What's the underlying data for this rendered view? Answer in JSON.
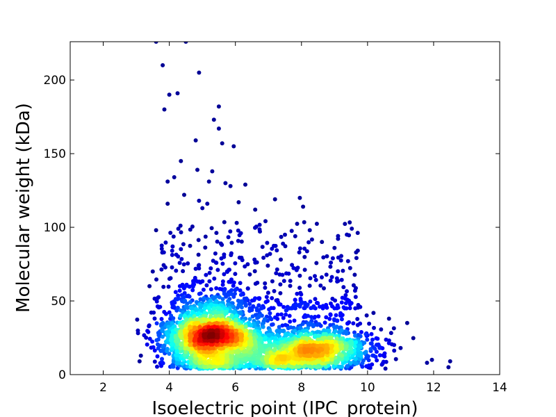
{
  "chart_data": {
    "type": "scatter",
    "title": "",
    "xlabel": "Isoelectric point (IPC_protein)",
    "ylabel": "Molecular weight (kDa)",
    "xlim": [
      1,
      14
    ],
    "ylim": [
      0,
      226
    ],
    "xticks": [
      2,
      4,
      6,
      8,
      10,
      12,
      14
    ],
    "yticks": [
      0,
      50,
      100,
      150,
      200
    ],
    "grid": false,
    "legend": "none",
    "color_scale": "density (jet: blue = low, red = high)",
    "clusters": [
      {
        "center_x": 5.3,
        "center_y": 24,
        "spread_x": 0.75,
        "spread_y": 13,
        "count": 2200,
        "peak_density": "high"
      },
      {
        "center_x": 8.5,
        "center_y": 17,
        "spread_x": 0.85,
        "spread_y": 9,
        "count": 1200,
        "peak_density": "medium"
      },
      {
        "center_x": 7.2,
        "center_y": 11,
        "spread_x": 0.6,
        "spread_y": 6,
        "count": 300,
        "peak_density": "low"
      }
    ],
    "outliers": [
      {
        "x": 3.6,
        "y": 226
      },
      {
        "x": 4.5,
        "y": 226
      },
      {
        "x": 3.8,
        "y": 210
      },
      {
        "x": 4.9,
        "y": 205
      },
      {
        "x": 4.0,
        "y": 190
      },
      {
        "x": 4.25,
        "y": 191
      },
      {
        "x": 3.85,
        "y": 180
      },
      {
        "x": 5.5,
        "y": 182
      },
      {
        "x": 5.35,
        "y": 173
      },
      {
        "x": 5.5,
        "y": 167
      },
      {
        "x": 4.8,
        "y": 159
      },
      {
        "x": 5.6,
        "y": 157
      },
      {
        "x": 5.95,
        "y": 155
      },
      {
        "x": 4.35,
        "y": 145
      },
      {
        "x": 4.85,
        "y": 139
      },
      {
        "x": 5.3,
        "y": 138
      },
      {
        "x": 4.15,
        "y": 134
      },
      {
        "x": 3.95,
        "y": 131
      },
      {
        "x": 5.7,
        "y": 130
      },
      {
        "x": 6.3,
        "y": 129
      },
      {
        "x": 5.85,
        "y": 128
      },
      {
        "x": 5.2,
        "y": 131
      },
      {
        "x": 4.45,
        "y": 122
      },
      {
        "x": 7.2,
        "y": 119
      },
      {
        "x": 7.95,
        "y": 120
      },
      {
        "x": 4.9,
        "y": 118
      },
      {
        "x": 5.15,
        "y": 116
      },
      {
        "x": 3.95,
        "y": 116
      },
      {
        "x": 6.1,
        "y": 117
      },
      {
        "x": 8.05,
        "y": 114
      },
      {
        "x": 5.0,
        "y": 113
      },
      {
        "x": 6.6,
        "y": 112
      },
      {
        "x": 3.6,
        "y": 98
      },
      {
        "x": 4.1,
        "y": 87
      },
      {
        "x": 7.5,
        "y": 95
      },
      {
        "x": 8.25,
        "y": 98
      },
      {
        "x": 9.0,
        "y": 86
      },
      {
        "x": 8.95,
        "y": 79
      },
      {
        "x": 3.5,
        "y": 70
      },
      {
        "x": 3.4,
        "y": 60
      },
      {
        "x": 10.65,
        "y": 38
      },
      {
        "x": 11.2,
        "y": 35
      },
      {
        "x": 11.95,
        "y": 10
      },
      {
        "x": 11.8,
        "y": 8
      },
      {
        "x": 12.5,
        "y": 9
      },
      {
        "x": 12.45,
        "y": 5
      },
      {
        "x": 11.0,
        "y": 18
      },
      {
        "x": 3.1,
        "y": 9
      }
    ]
  }
}
